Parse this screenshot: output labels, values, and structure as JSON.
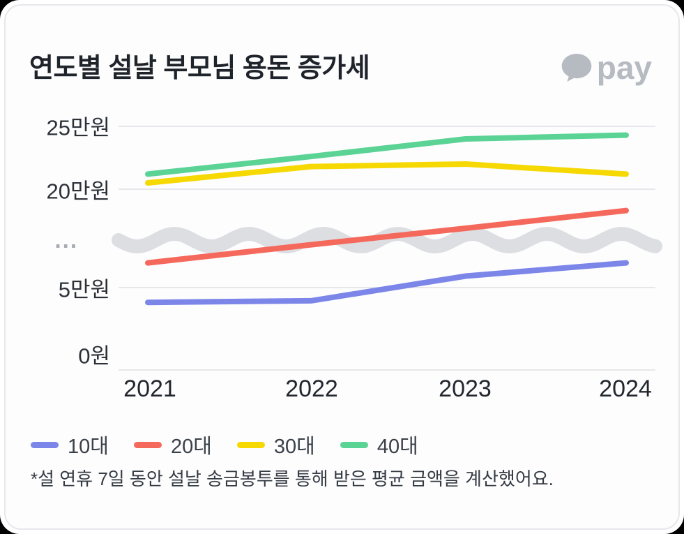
{
  "header": {
    "title": "연도별 설날 부모님 용돈 증가세",
    "logo_text": "pay"
  },
  "chart_data": {
    "type": "line",
    "title": "연도별 설날 부모님 용돈 증가세",
    "unit": "만원",
    "x": [
      "2021",
      "2022",
      "2023",
      "2024"
    ],
    "x_axis_labels": [
      "2021",
      "2022",
      "2023",
      "2024"
    ],
    "series": [
      {
        "name": "10대",
        "color": "#7b86e8",
        "values": [
          4.1,
          4.2,
          5.7,
          6.5
        ]
      },
      {
        "name": "20대",
        "color": "#f5695c",
        "values": [
          6.5,
          9.7,
          14.2,
          18.3
        ]
      },
      {
        "name": "30대",
        "color": "#f6d803",
        "values": [
          20.5,
          21.8,
          22.0,
          21.2
        ]
      },
      {
        "name": "40대",
        "color": "#5bd395",
        "values": [
          21.2,
          22.6,
          24.0,
          24.3
        ]
      }
    ],
    "y_axis": {
      "ticks": [
        "25만원",
        "20만원",
        "...",
        "5만원",
        "0원"
      ],
      "axis_break": {
        "between": [
          "5만원",
          "20만원"
        ]
      },
      "ylim": [
        0,
        26
      ]
    },
    "grid": "horizontal",
    "legend_position": "bottom-left",
    "legend": [
      "10대",
      "20대",
      "30대",
      "40대"
    ],
    "footnote": "*설 연휴 7일 동안 설날 송금봉투를 통해 받은 평균 금액을 계산했어요."
  }
}
